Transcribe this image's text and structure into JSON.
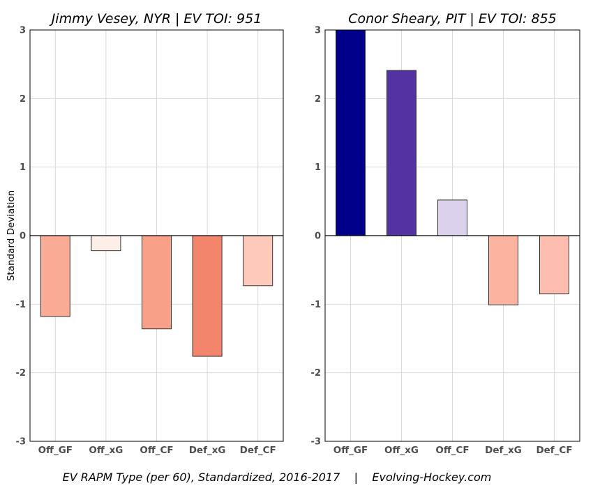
{
  "chart_data": [
    {
      "type": "bar",
      "title": "Jimmy Vesey, NYR  |  EV TOI: 951",
      "categories": [
        "Off_GF",
        "Off_xG",
        "Off_CF",
        "Def_xG",
        "Def_CF"
      ],
      "values": [
        -1.18,
        -0.22,
        -1.36,
        -1.76,
        -0.73
      ],
      "colors": [
        "#f9ab95",
        "#fdeee8",
        "#f8a088",
        "#f2856c",
        "#fdc9bb"
      ],
      "ylabel": "Standard Deviation",
      "ylim": [
        -3,
        3
      ],
      "yticks": [
        "-3",
        "-2",
        "-1",
        "0",
        "1",
        "2",
        "3"
      ],
      "grid": true
    },
    {
      "type": "bar",
      "title": "Conor Sheary, PIT  |  EV TOI: 855",
      "categories": [
        "Off_GF",
        "Off_xG",
        "Off_CF",
        "Def_xG",
        "Def_CF"
      ],
      "values": [
        3.0,
        2.41,
        0.52,
        -1.01,
        -0.85
      ],
      "colors": [
        "#00008b",
        "#5233a1",
        "#dbd1ec",
        "#fcb39f",
        "#fdbeaf"
      ],
      "ylabel": "",
      "ylim": [
        -3,
        3
      ],
      "yticks": [
        "-3",
        "-2",
        "-1",
        "0",
        "1",
        "2",
        "3"
      ],
      "grid": true
    }
  ],
  "caption": "EV RAPM Type (per 60), Standardized, 2016-2017    |    Evolving-Hockey.com"
}
